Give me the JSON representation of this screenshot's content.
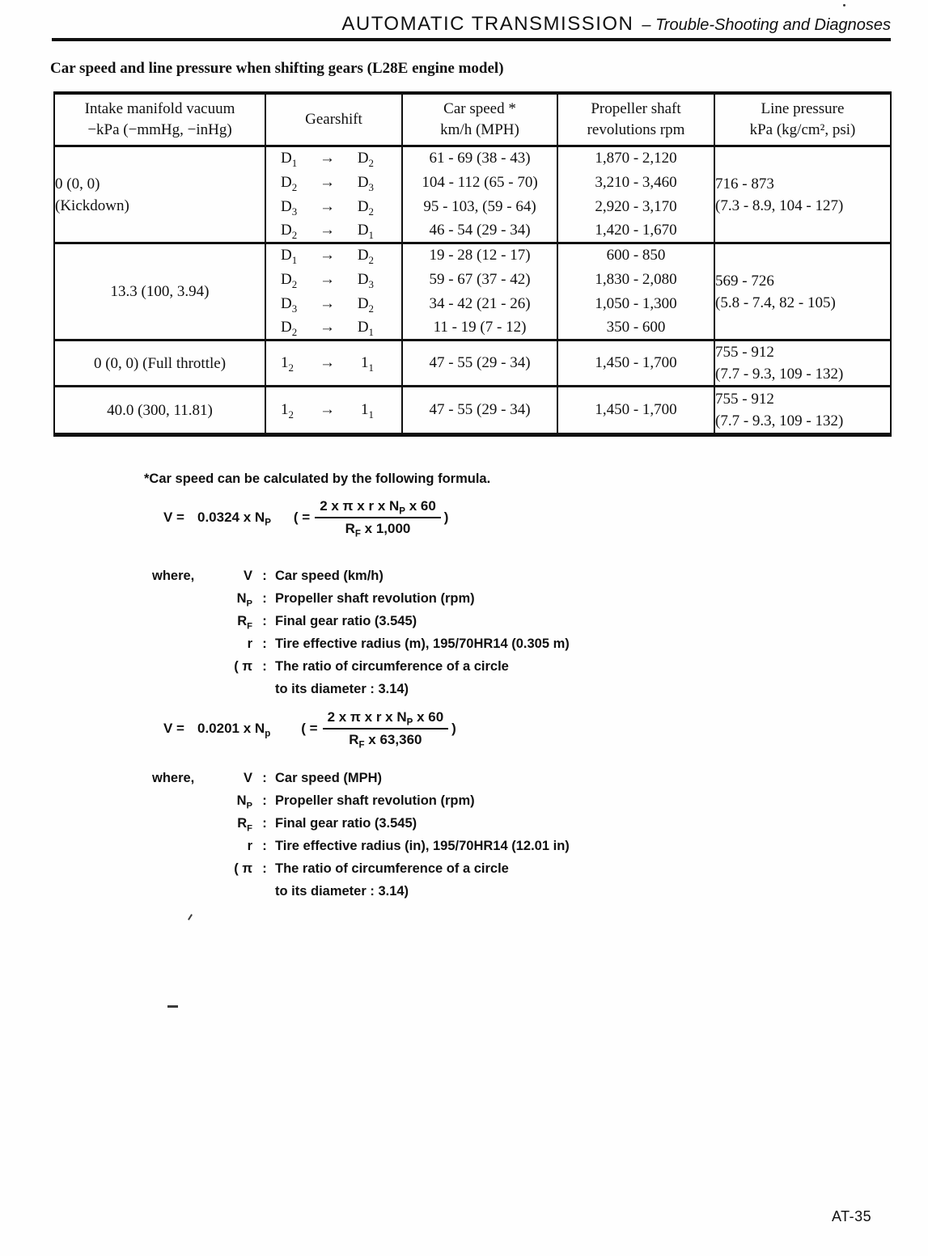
{
  "header": {
    "title": "AUTOMATIC TRANSMISSION",
    "subtitle": "– Trouble-Shooting and Diagnoses"
  },
  "section_title": "Car speed and line pressure when shifting gears (L28E engine model)",
  "table": {
    "arrow": "→",
    "headers": [
      {
        "l1": "Intake manifold vacuum",
        "l2": "−kPa (−mmHg, −inHg)"
      },
      {
        "l1": "Gearshift",
        "l2": ""
      },
      {
        "l1": "Car speed *",
        "l2": "km/h (MPH)"
      },
      {
        "l1": "Propeller shaft",
        "l2": "revolutions  rpm"
      },
      {
        "l1": "Line pressure",
        "l2": "kPa (kg/cm², psi)"
      }
    ],
    "groups": [
      {
        "vac1": "0 (0, 0)",
        "vac2": "(Kickdown)",
        "rows": [
          {
            "from": "D~1~",
            "to": "D~2~",
            "speed": "61 - 69 (38 - 43)",
            "rpm": "1,870 - 2,120"
          },
          {
            "from": "D~2~",
            "to": "D~3~",
            "speed": "104 - 112 (65 - 70)",
            "rpm": "3,210 - 3,460"
          },
          {
            "from": "D~3~",
            "to": "D~2~",
            "speed": "95 - 103, (59 - 64)",
            "rpm": "2,920 - 3,170"
          },
          {
            "from": "D~2~",
            "to": "D~1~",
            "speed": "46 - 54 (29 - 34)",
            "rpm": "1,420 - 1,670"
          }
        ],
        "p1": "716 - 873",
        "p2": "(7.3 - 8.9, 104 - 127)"
      },
      {
        "vac1": "13.3 (100, 3.94)",
        "vac2": "",
        "rows": [
          {
            "from": "D~1~",
            "to": "D~2~",
            "speed": "19 - 28 (12 - 17)",
            "rpm": "600 - 850"
          },
          {
            "from": "D~2~",
            "to": "D~3~",
            "speed": "59 - 67 (37 - 42)",
            "rpm": "1,830 - 2,080"
          },
          {
            "from": "D~3~",
            "to": "D~2~",
            "speed": "34 - 42 (21 - 26)",
            "rpm": "1,050 - 1,300"
          },
          {
            "from": "D~2~",
            "to": "D~1~",
            "speed": "11 - 19 (7 - 12)",
            "rpm": "350 - 600"
          }
        ],
        "p1": "569 - 726",
        "p2": "(5.8 - 7.4, 82 - 105)"
      },
      {
        "vac1": "0 (0, 0) (Full throttle)",
        "vac2": "",
        "rows": [
          {
            "from": "1~2~",
            "to": "1~1~",
            "speed": "47 - 55 (29 - 34)",
            "rpm": "1,450 - 1,700"
          }
        ],
        "p1": "755 - 912",
        "p2": "(7.7 - 9.3, 109 - 132)"
      },
      {
        "vac1": "40.0 (300, 11.81)",
        "vac2": "",
        "rows": [
          {
            "from": "1~2~",
            "to": "1~1~",
            "speed": "47 - 55 (29 - 34)",
            "rpm": "1,450 - 1,700"
          }
        ],
        "p1": "755 - 912",
        "p2": "(7.7 - 9.3, 109 - 132)"
      }
    ]
  },
  "note": "*Car speed can be calculated by the following formula.",
  "formula1": {
    "lhs": "V =",
    "coef": "0.0324  x N~P~",
    "open": "( =",
    "num": "2 x π x r x N~P~ x 60",
    "den": "R~F~ x 1,000",
    "close": ")"
  },
  "formula2": {
    "lhs": "V =",
    "coef": "0.0201 x N~p~",
    "open": "( =",
    "num": "2 x π x r x N~P~ x 60",
    "den": "R~F~ x 63,360",
    "close": ")"
  },
  "where1": {
    "intro": "where,",
    "rows": [
      {
        "sym": "V",
        "colon": ":",
        "desc": "Car speed (km/h)"
      },
      {
        "sym": "N~P~",
        "colon": ":",
        "desc": "Propeller shaft revolution (rpm)"
      },
      {
        "sym": "R~F~",
        "colon": ":",
        "desc": "Final gear ratio (3.545)"
      },
      {
        "sym": "r",
        "colon": ":",
        "desc": "Tire effective radius (m), 195/70HR14 (0.305 m)"
      },
      {
        "sym": "( π",
        "colon": ":",
        "desc": "The ratio of circumference of a circle"
      },
      {
        "sym": "",
        "colon": "",
        "desc": "to its diameter : 3.14)"
      }
    ]
  },
  "where2": {
    "intro": "where,",
    "rows": [
      {
        "sym": "V",
        "colon": ":",
        "desc": "Car speed (MPH)"
      },
      {
        "sym": "N~P~",
        "colon": ":",
        "desc": "Propeller shaft revolution (rpm)"
      },
      {
        "sym": "R~F~",
        "colon": ":",
        "desc": "Final gear ratio (3.545)"
      },
      {
        "sym": "r",
        "colon": ":",
        "desc": "Tire effective radius (in), 195/70HR14 (12.01 in)"
      },
      {
        "sym": "( π",
        "colon": ":",
        "desc": "The ratio of circumference of a circle"
      },
      {
        "sym": "",
        "colon": "",
        "desc": "to its diameter : 3.14)"
      }
    ]
  },
  "page_number": "AT-35"
}
